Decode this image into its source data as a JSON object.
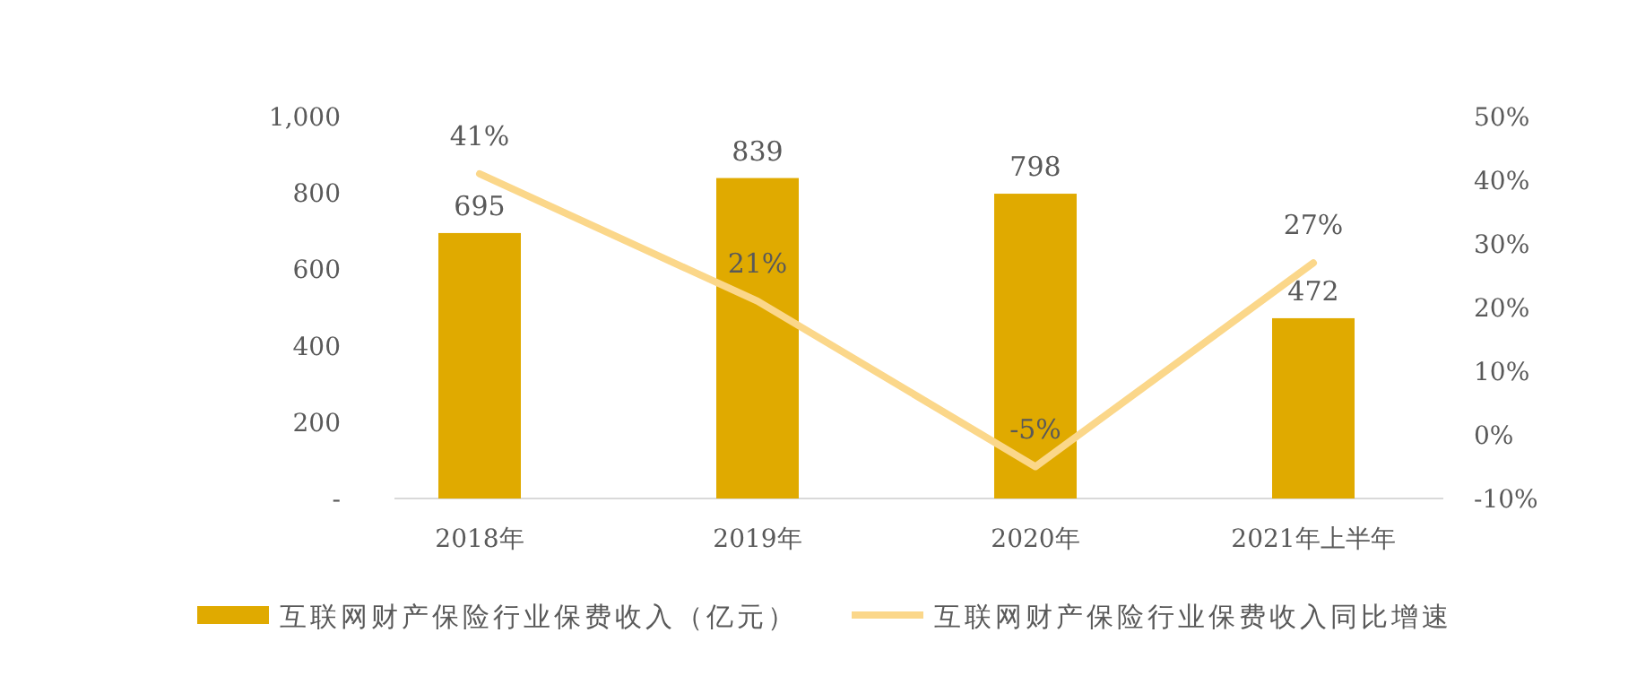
{
  "chart_data": {
    "type": "bar",
    "categories": [
      "2018年",
      "2019年",
      "2020年",
      "2021年上半年"
    ],
    "series": [
      {
        "name": "互联网财产保险行业保费收入（亿元）",
        "color": "#e0aa00",
        "values": [
          695,
          839,
          798,
          472
        ],
        "value_labels": [
          "695",
          "839",
          "798",
          "472"
        ]
      },
      {
        "name": "互联网财产保险行业保费收入同比增速",
        "type": "line",
        "axis": "y2",
        "color": "#fbd78a",
        "values": [
          41,
          21,
          -5,
          27
        ],
        "value_labels": [
          "41%",
          "21%",
          "-5%",
          "27%"
        ]
      }
    ],
    "ylim": [
      0,
      1000
    ],
    "yticks": [
      {
        "value": 0,
        "label": "-"
      },
      200,
      400,
      600,
      800,
      {
        "value": 1000,
        "label": "1,000"
      }
    ],
    "y2lim": [
      -10,
      50
    ],
    "y2ticks": [
      {
        "value": -10,
        "label": "-10%"
      },
      {
        "value": 0,
        "label": "0%"
      },
      {
        "value": 10,
        "label": "10%"
      },
      {
        "value": 20,
        "label": "20%"
      },
      {
        "value": 30,
        "label": "30%"
      },
      {
        "value": 40,
        "label": "40%"
      },
      {
        "value": 50,
        "label": "50%"
      }
    ],
    "legend": "bottom"
  }
}
